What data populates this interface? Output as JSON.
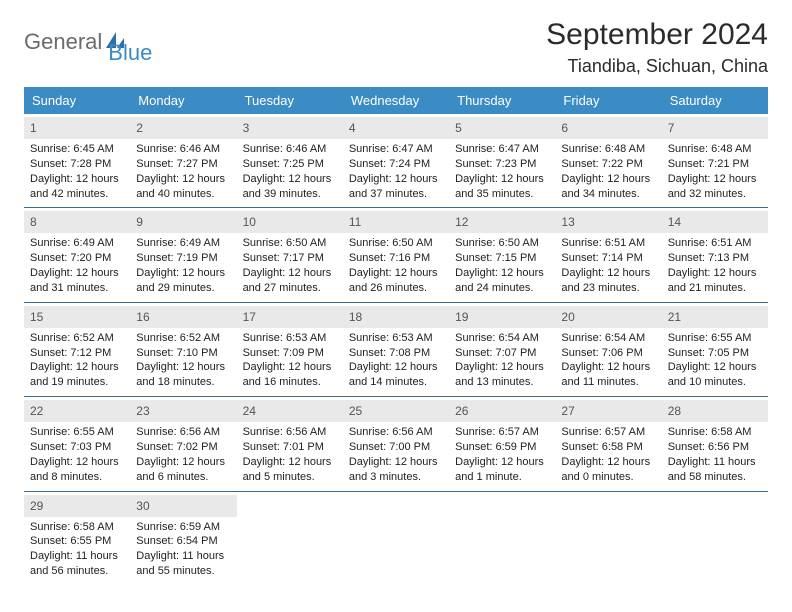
{
  "logo": {
    "text1": "General",
    "text2": "Blue"
  },
  "title": "September 2024",
  "location": "Tiandiba, Sichuan, China",
  "styling": {
    "header_bg": "#3b8bc4",
    "header_text_color": "#ffffff",
    "daynum_bg": "#e9e9e9",
    "week_border": "#3b6a8f",
    "page_bg": "#ffffff",
    "body_text": "#222222",
    "title_fontsize": 30,
    "location_fontsize": 18,
    "header_fontsize": 13,
    "daynum_fontsize": 12,
    "cell_fontsize": 11
  },
  "weekdays": [
    "Sunday",
    "Monday",
    "Tuesday",
    "Wednesday",
    "Thursday",
    "Friday",
    "Saturday"
  ],
  "weeks": [
    [
      {
        "n": "1",
        "sr": "Sunrise: 6:45 AM",
        "ss": "Sunset: 7:28 PM",
        "d1": "Daylight: 12 hours",
        "d2": "and 42 minutes."
      },
      {
        "n": "2",
        "sr": "Sunrise: 6:46 AM",
        "ss": "Sunset: 7:27 PM",
        "d1": "Daylight: 12 hours",
        "d2": "and 40 minutes."
      },
      {
        "n": "3",
        "sr": "Sunrise: 6:46 AM",
        "ss": "Sunset: 7:25 PM",
        "d1": "Daylight: 12 hours",
        "d2": "and 39 minutes."
      },
      {
        "n": "4",
        "sr": "Sunrise: 6:47 AM",
        "ss": "Sunset: 7:24 PM",
        "d1": "Daylight: 12 hours",
        "d2": "and 37 minutes."
      },
      {
        "n": "5",
        "sr": "Sunrise: 6:47 AM",
        "ss": "Sunset: 7:23 PM",
        "d1": "Daylight: 12 hours",
        "d2": "and 35 minutes."
      },
      {
        "n": "6",
        "sr": "Sunrise: 6:48 AM",
        "ss": "Sunset: 7:22 PM",
        "d1": "Daylight: 12 hours",
        "d2": "and 34 minutes."
      },
      {
        "n": "7",
        "sr": "Sunrise: 6:48 AM",
        "ss": "Sunset: 7:21 PM",
        "d1": "Daylight: 12 hours",
        "d2": "and 32 minutes."
      }
    ],
    [
      {
        "n": "8",
        "sr": "Sunrise: 6:49 AM",
        "ss": "Sunset: 7:20 PM",
        "d1": "Daylight: 12 hours",
        "d2": "and 31 minutes."
      },
      {
        "n": "9",
        "sr": "Sunrise: 6:49 AM",
        "ss": "Sunset: 7:19 PM",
        "d1": "Daylight: 12 hours",
        "d2": "and 29 minutes."
      },
      {
        "n": "10",
        "sr": "Sunrise: 6:50 AM",
        "ss": "Sunset: 7:17 PM",
        "d1": "Daylight: 12 hours",
        "d2": "and 27 minutes."
      },
      {
        "n": "11",
        "sr": "Sunrise: 6:50 AM",
        "ss": "Sunset: 7:16 PM",
        "d1": "Daylight: 12 hours",
        "d2": "and 26 minutes."
      },
      {
        "n": "12",
        "sr": "Sunrise: 6:50 AM",
        "ss": "Sunset: 7:15 PM",
        "d1": "Daylight: 12 hours",
        "d2": "and 24 minutes."
      },
      {
        "n": "13",
        "sr": "Sunrise: 6:51 AM",
        "ss": "Sunset: 7:14 PM",
        "d1": "Daylight: 12 hours",
        "d2": "and 23 minutes."
      },
      {
        "n": "14",
        "sr": "Sunrise: 6:51 AM",
        "ss": "Sunset: 7:13 PM",
        "d1": "Daylight: 12 hours",
        "d2": "and 21 minutes."
      }
    ],
    [
      {
        "n": "15",
        "sr": "Sunrise: 6:52 AM",
        "ss": "Sunset: 7:12 PM",
        "d1": "Daylight: 12 hours",
        "d2": "and 19 minutes."
      },
      {
        "n": "16",
        "sr": "Sunrise: 6:52 AM",
        "ss": "Sunset: 7:10 PM",
        "d1": "Daylight: 12 hours",
        "d2": "and 18 minutes."
      },
      {
        "n": "17",
        "sr": "Sunrise: 6:53 AM",
        "ss": "Sunset: 7:09 PM",
        "d1": "Daylight: 12 hours",
        "d2": "and 16 minutes."
      },
      {
        "n": "18",
        "sr": "Sunrise: 6:53 AM",
        "ss": "Sunset: 7:08 PM",
        "d1": "Daylight: 12 hours",
        "d2": "and 14 minutes."
      },
      {
        "n": "19",
        "sr": "Sunrise: 6:54 AM",
        "ss": "Sunset: 7:07 PM",
        "d1": "Daylight: 12 hours",
        "d2": "and 13 minutes."
      },
      {
        "n": "20",
        "sr": "Sunrise: 6:54 AM",
        "ss": "Sunset: 7:06 PM",
        "d1": "Daylight: 12 hours",
        "d2": "and 11 minutes."
      },
      {
        "n": "21",
        "sr": "Sunrise: 6:55 AM",
        "ss": "Sunset: 7:05 PM",
        "d1": "Daylight: 12 hours",
        "d2": "and 10 minutes."
      }
    ],
    [
      {
        "n": "22",
        "sr": "Sunrise: 6:55 AM",
        "ss": "Sunset: 7:03 PM",
        "d1": "Daylight: 12 hours",
        "d2": "and 8 minutes."
      },
      {
        "n": "23",
        "sr": "Sunrise: 6:56 AM",
        "ss": "Sunset: 7:02 PM",
        "d1": "Daylight: 12 hours",
        "d2": "and 6 minutes."
      },
      {
        "n": "24",
        "sr": "Sunrise: 6:56 AM",
        "ss": "Sunset: 7:01 PM",
        "d1": "Daylight: 12 hours",
        "d2": "and 5 minutes."
      },
      {
        "n": "25",
        "sr": "Sunrise: 6:56 AM",
        "ss": "Sunset: 7:00 PM",
        "d1": "Daylight: 12 hours",
        "d2": "and 3 minutes."
      },
      {
        "n": "26",
        "sr": "Sunrise: 6:57 AM",
        "ss": "Sunset: 6:59 PM",
        "d1": "Daylight: 12 hours",
        "d2": "and 1 minute."
      },
      {
        "n": "27",
        "sr": "Sunrise: 6:57 AM",
        "ss": "Sunset: 6:58 PM",
        "d1": "Daylight: 12 hours",
        "d2": "and 0 minutes."
      },
      {
        "n": "28",
        "sr": "Sunrise: 6:58 AM",
        "ss": "Sunset: 6:56 PM",
        "d1": "Daylight: 11 hours",
        "d2": "and 58 minutes."
      }
    ],
    [
      {
        "n": "29",
        "sr": "Sunrise: 6:58 AM",
        "ss": "Sunset: 6:55 PM",
        "d1": "Daylight: 11 hours",
        "d2": "and 56 minutes."
      },
      {
        "n": "30",
        "sr": "Sunrise: 6:59 AM",
        "ss": "Sunset: 6:54 PM",
        "d1": "Daylight: 11 hours",
        "d2": "and 55 minutes."
      },
      {
        "empty": true
      },
      {
        "empty": true
      },
      {
        "empty": true
      },
      {
        "empty": true
      },
      {
        "empty": true
      }
    ]
  ]
}
